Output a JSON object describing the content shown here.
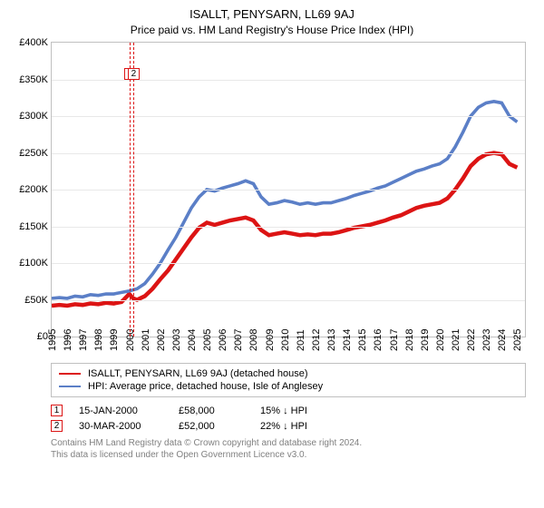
{
  "title": "ISALLT, PENYSARN, LL69 9AJ",
  "subtitle": "Price paid vs. HM Land Registry's House Price Index (HPI)",
  "background_color": "#ffffff",
  "grid_color": "#e8e8e8",
  "axis_color": "#c0c0c0",
  "label_color": "#000000",
  "label_fontsize": 11,
  "title_fontsize": 13,
  "chart": {
    "type": "line",
    "xlim": [
      1995,
      2025.5
    ],
    "ylim": [
      0,
      400000
    ],
    "ytick_step": 50000,
    "ytick_labels": [
      "£0",
      "£50K",
      "£100K",
      "£150K",
      "£200K",
      "£250K",
      "£300K",
      "£350K",
      "£400K"
    ],
    "xticks": [
      1995,
      1996,
      1997,
      1998,
      1999,
      2000,
      2001,
      2002,
      2003,
      2004,
      2005,
      2006,
      2007,
      2008,
      2009,
      2010,
      2011,
      2012,
      2013,
      2014,
      2015,
      2016,
      2017,
      2018,
      2019,
      2020,
      2021,
      2022,
      2023,
      2024,
      2025
    ],
    "series": [
      {
        "name": "ISALLT, PENYSARN, LL69 9AJ (detached house)",
        "color": "#dc1414",
        "width": 1.5,
        "x": [
          1995,
          1995.5,
          1996,
          1996.5,
          1997,
          1997.5,
          1998,
          1998.5,
          1999,
          1999.5,
          2000,
          2000.25,
          2000.5,
          2001,
          2001.5,
          2002,
          2002.5,
          2003,
          2003.5,
          2004,
          2004.5,
          2005,
          2005.5,
          2006,
          2006.5,
          2007,
          2007.5,
          2008,
          2008.5,
          2009,
          2009.5,
          2010,
          2010.5,
          2011,
          2011.5,
          2012,
          2012.5,
          2013,
          2013.5,
          2014,
          2014.5,
          2015,
          2015.5,
          2016,
          2016.5,
          2017,
          2017.5,
          2018,
          2018.5,
          2019,
          2019.5,
          2020,
          2020.5,
          2021,
          2021.5,
          2022,
          2022.5,
          2023,
          2023.5,
          2024,
          2024.5,
          2025
        ],
        "y": [
          42000,
          43000,
          42000,
          44000,
          43000,
          45000,
          44000,
          46000,
          45000,
          47000,
          58000,
          52000,
          50000,
          55000,
          65000,
          78000,
          90000,
          105000,
          120000,
          135000,
          148000,
          155000,
          152000,
          155000,
          158000,
          160000,
          162000,
          158000,
          145000,
          138000,
          140000,
          142000,
          140000,
          138000,
          139000,
          138000,
          140000,
          140000,
          142000,
          145000,
          148000,
          150000,
          152000,
          155000,
          158000,
          162000,
          165000,
          170000,
          175000,
          178000,
          180000,
          182000,
          188000,
          200000,
          215000,
          232000,
          242000,
          248000,
          250000,
          248000,
          235000,
          230000
        ]
      },
      {
        "name": "HPI: Average price, detached house, Isle of Anglesey",
        "color": "#5b7fc7",
        "width": 1.2,
        "x": [
          1995,
          1995.5,
          1996,
          1996.5,
          1997,
          1997.5,
          1998,
          1998.5,
          1999,
          1999.5,
          2000,
          2000.5,
          2001,
          2001.5,
          2002,
          2002.5,
          2003,
          2003.5,
          2004,
          2004.5,
          2005,
          2005.5,
          2006,
          2006.5,
          2007,
          2007.5,
          2008,
          2008.5,
          2009,
          2009.5,
          2010,
          2010.5,
          2011,
          2011.5,
          2012,
          2012.5,
          2013,
          2013.5,
          2014,
          2014.5,
          2015,
          2015.5,
          2016,
          2016.5,
          2017,
          2017.5,
          2018,
          2018.5,
          2019,
          2019.5,
          2020,
          2020.5,
          2021,
          2021.5,
          2022,
          2022.5,
          2023,
          2023.5,
          2024,
          2024.5,
          2025
        ],
        "y": [
          52000,
          53000,
          52000,
          55000,
          54000,
          57000,
          56000,
          58000,
          58000,
          60000,
          62000,
          65000,
          72000,
          85000,
          100000,
          118000,
          135000,
          155000,
          175000,
          190000,
          200000,
          198000,
          202000,
          205000,
          208000,
          212000,
          208000,
          190000,
          180000,
          182000,
          185000,
          183000,
          180000,
          182000,
          180000,
          182000,
          182000,
          185000,
          188000,
          192000,
          195000,
          198000,
          202000,
          205000,
          210000,
          215000,
          220000,
          225000,
          228000,
          232000,
          235000,
          242000,
          258000,
          278000,
          300000,
          312000,
          318000,
          320000,
          318000,
          300000,
          292000
        ]
      }
    ],
    "events": [
      {
        "n": "1",
        "x": 2000.04,
        "color": "#dc1414"
      },
      {
        "n": "2",
        "x": 2000.25,
        "color": "#dc1414"
      }
    ]
  },
  "legend": {
    "border_color": "#c0c0c0",
    "items": [
      {
        "label": "ISALLT, PENYSARN, LL69 9AJ (detached house)",
        "color": "#dc1414"
      },
      {
        "label": "HPI: Average price, detached house, Isle of Anglesey",
        "color": "#5b7fc7"
      }
    ]
  },
  "sales": [
    {
      "n": "1",
      "color": "#dc1414",
      "date": "15-JAN-2000",
      "price": "£58,000",
      "hpi": "15% ↓ HPI"
    },
    {
      "n": "2",
      "color": "#dc1414",
      "date": "30-MAR-2000",
      "price": "£52,000",
      "hpi": "22% ↓ HPI"
    }
  ],
  "footer_line1": "Contains HM Land Registry data © Crown copyright and database right 2024.",
  "footer_line2": "This data is licensed under the Open Government Licence v3.0."
}
